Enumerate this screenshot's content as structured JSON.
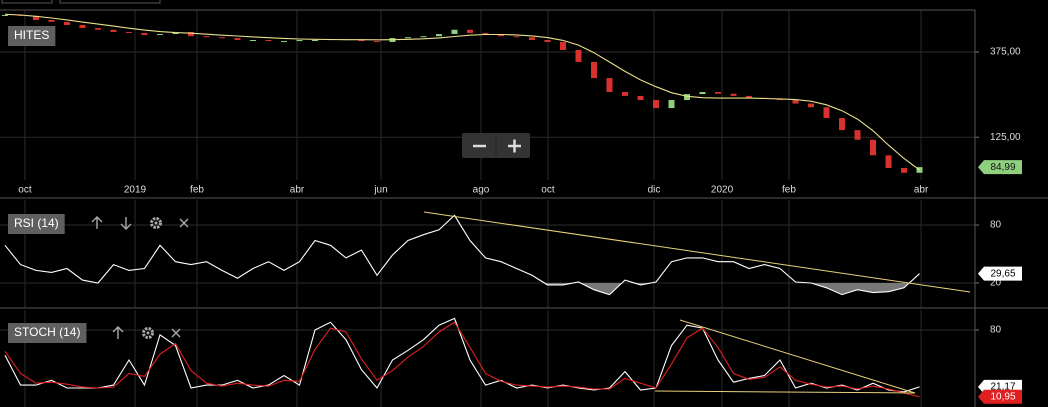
{
  "chart_data": [
    {
      "type": "candlestick",
      "title": "HITES",
      "log_scale": true,
      "grid": true,
      "up_color": "#8fd07f",
      "down_color": "#d9322e",
      "xlim": [
        -0.32,
        62.58
      ],
      "xticks": [
        {
          "value": 1.29,
          "label": "oct"
        },
        {
          "value": 8.39,
          "label": "2019"
        },
        {
          "value": 12.39,
          "label": "feb"
        },
        {
          "value": 18.84,
          "label": "abr"
        },
        {
          "value": 24.26,
          "label": "jun"
        },
        {
          "value": 30.71,
          "label": "ago"
        },
        {
          "value": 35.03,
          "label": "oct"
        },
        {
          "value": 41.87,
          "label": "dic"
        },
        {
          "value": 46.26,
          "label": "2020"
        },
        {
          "value": 50.58,
          "label": "feb"
        },
        {
          "value": 59.1,
          "label": "abr"
        }
      ],
      "ylim": [
        72,
        645
      ],
      "yticks": [
        {
          "value": 375,
          "label": "375,00"
        },
        {
          "value": 125,
          "label": "125,00"
        }
      ],
      "values": [
        605,
        598,
        567,
        553,
        532,
        511,
        500,
        486,
        480,
        467,
        473,
        486,
        460,
        454,
        449,
        438,
        438,
        432,
        432,
        438,
        438,
        443,
        438,
        432,
        427,
        449,
        454,
        460,
        473,
        500,
        480,
        473,
        460,
        454,
        438,
        427,
        385,
        330,
        268,
        224,
        213,
        202,
        182,
        202,
        218,
        224,
        219,
        213,
        208,
        205,
        202,
        193,
        184,
        160,
        137,
        121,
        99,
        84,
        79,
        84.99
      ],
      "last_value_label": "84,99",
      "moving_average": {
        "color": "#e8e08a",
        "values": [
          610,
          605,
          595,
          582,
          568,
          552,
          538,
          524,
          510,
          498,
          488,
          482,
          478,
          472,
          466,
          461,
          456,
          451,
          447,
          444,
          442,
          441,
          440,
          440,
          439,
          440,
          442,
          445,
          450,
          458,
          466,
          470,
          470,
          468,
          462,
          452,
          436,
          410,
          372,
          330,
          292,
          262,
          240,
          222,
          212,
          208,
          207,
          207,
          207,
          206,
          205,
          203,
          199,
          190,
          176,
          158,
          136,
          113,
          95,
          82
        ]
      }
    },
    {
      "type": "line",
      "title": "RSI (14)",
      "grid": true,
      "oversold_shading": true,
      "ylim": [
        -5.9,
        105.9
      ],
      "yticks": [
        80,
        20
      ],
      "color": "#ffffff",
      "values": [
        59,
        39,
        33,
        31,
        35,
        23,
        20,
        39,
        33,
        35,
        59,
        42,
        39,
        42,
        33,
        25,
        35,
        42,
        33,
        42,
        64,
        59,
        46,
        54,
        28,
        49,
        64,
        70,
        75,
        90,
        64,
        46,
        42,
        35,
        28,
        18,
        18,
        21,
        13,
        8,
        23,
        18,
        21,
        42,
        46,
        46,
        42,
        42,
        35,
        39,
        35,
        21,
        20,
        15,
        8,
        13,
        10,
        11,
        15,
        29.65
      ],
      "last_value_label": "29,65"
    },
    {
      "type": "line",
      "title": "STOCH (14)",
      "grid": true,
      "ylim": [
        0.4,
        100.7
      ],
      "yticks": [
        80
      ],
      "series": [
        {
          "color": "#ffffff",
          "values": [
            54,
            23,
            23,
            28,
            20,
            20,
            20,
            23,
            49,
            23,
            75,
            64,
            20,
            23,
            23,
            28,
            20,
            23,
            33,
            23,
            80,
            88,
            70,
            39,
            20,
            49,
            59,
            70,
            85,
            92,
            49,
            23,
            28,
            20,
            23,
            20,
            23,
            20,
            18,
            20,
            37,
            18,
            20,
            64,
            85,
            82,
            49,
            26,
            30,
            33,
            49,
            20,
            25,
            20,
            23,
            18,
            25,
            18,
            16,
            21.17
          ],
          "last_value_label": "21,17"
        },
        {
          "color": "#e02020",
          "values": [
            58,
            35,
            25,
            26,
            24,
            21,
            20,
            21,
            35,
            32,
            55,
            66,
            38,
            25,
            22,
            25,
            23,
            22,
            28,
            27,
            60,
            82,
            78,
            50,
            28,
            38,
            52,
            63,
            78,
            88,
            62,
            35,
            27,
            23,
            22,
            21,
            22,
            21,
            19,
            19,
            30,
            25,
            20,
            45,
            72,
            82,
            62,
            35,
            29,
            31,
            42,
            28,
            24,
            21,
            22,
            19,
            22,
            19,
            15,
            10.95
          ],
          "last_value_label": "10,95"
        }
      ]
    }
  ]
}
